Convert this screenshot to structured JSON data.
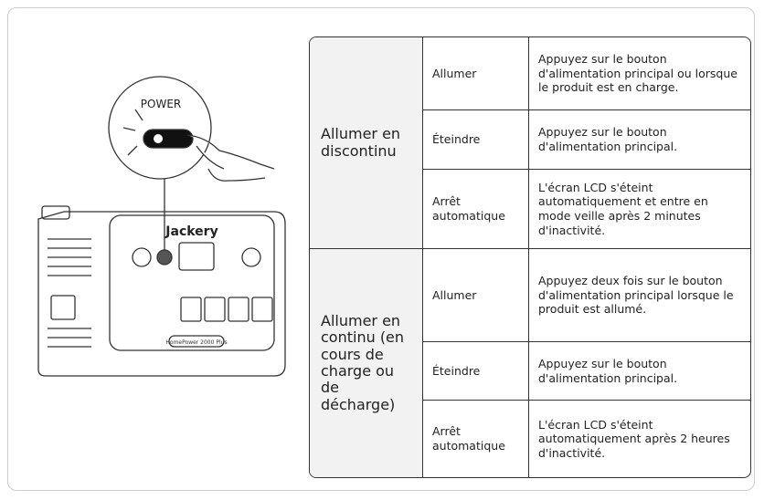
{
  "illustration": {
    "callout_label": "POWER",
    "brand": "Jackery",
    "model": "HomePower 2000 Plus"
  },
  "table": {
    "groups": [
      {
        "mode": "Allumer en discontinu",
        "rows": [
          {
            "action": "Allumer",
            "description": "Appuyez sur le bouton d'alimentation principal ou lorsque le produit est en charge."
          },
          {
            "action": "Éteindre",
            "description": "Appuyez sur le bouton d'alimentation principal."
          },
          {
            "action": "Arrêt automatique",
            "description": "L'écran LCD s'éteint automatiquement et entre en mode veille après 2 minutes d'inactivité."
          }
        ]
      },
      {
        "mode": "Allumer en continu (en cours de charge ou de décharge)",
        "rows": [
          {
            "action": "Allumer",
            "description": "Appuyez deux fois sur le bouton d'alimentation principal lorsque le produit est allumé."
          },
          {
            "action": "Éteindre",
            "description": "Appuyez sur le bouton d'alimentation principal."
          },
          {
            "action": "Arrêt automatique",
            "description": "L'écran LCD s'éteint automatiquement après 2 heures d'inactivité."
          }
        ]
      }
    ]
  }
}
